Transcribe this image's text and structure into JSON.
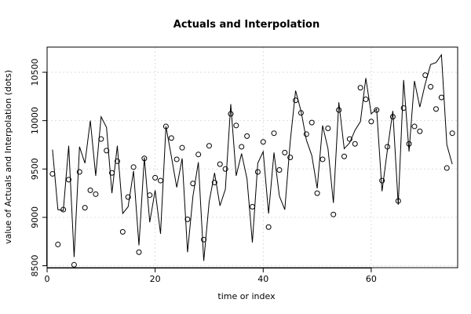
{
  "chart_data": {
    "type": "line",
    "title": "Actuals and Interpolation",
    "xlabel": "time or index",
    "ylabel": "value of Actuals and Interpolation (dots)",
    "xlim": [
      0,
      76
    ],
    "ylim": [
      8480,
      10760
    ],
    "x_ticks": [
      0,
      20,
      40,
      60
    ],
    "y_ticks": [
      8500,
      9000,
      9500,
      10000,
      10500
    ],
    "grid": true,
    "legend": "none",
    "series": [
      {
        "kind": "line",
        "style": "solid",
        "values": [
          9700,
          9080,
          9070,
          9740,
          8590,
          9730,
          9560,
          10000,
          9430,
          10040,
          9930,
          9250,
          9740,
          9040,
          9110,
          9480,
          8710,
          9620,
          8950,
          9280,
          8830,
          9940,
          9630,
          9310,
          9610,
          8640,
          9220,
          9570,
          8550,
          9160,
          9460,
          9120,
          9290,
          10170,
          9430,
          9660,
          9400,
          8740,
          9560,
          9680,
          9040,
          9670,
          9220,
          9080,
          9780,
          10310,
          10100,
          9800,
          9640,
          9300,
          9950,
          9710,
          9150,
          10190,
          9710,
          9770,
          9900,
          9990,
          10440,
          10070,
          10120,
          9270,
          9700,
          10100,
          9130,
          10420,
          9680,
          10410,
          10140,
          10380,
          10580,
          10600,
          10680,
          9750,
          9550
        ]
      },
      {
        "kind": "points",
        "style": "open-circle",
        "values": [
          9450,
          8720,
          9080,
          9390,
          8510,
          9470,
          9100,
          9280,
          9240,
          9810,
          9690,
          9460,
          9580,
          8850,
          9210,
          9520,
          8640,
          9610,
          9230,
          9410,
          9380,
          9940,
          9820,
          9600,
          9720,
          8980,
          9350,
          9650,
          8770,
          9740,
          9360,
          9550,
          9500,
          10070,
          9950,
          9730,
          9840,
          9110,
          9470,
          9780,
          8900,
          9870,
          9490,
          9670,
          9620,
          10210,
          10080,
          9860,
          9980,
          9250,
          9600,
          9920,
          9030,
          10110,
          9630,
          9810,
          9760,
          10340,
          10220,
          9990,
          10110,
          9380,
          9730,
          10040,
          9170,
          10130,
          9760,
          9940,
          9890,
          10470,
          10350,
          10120,
          10240,
          9510,
          9870
        ]
      }
    ]
  }
}
